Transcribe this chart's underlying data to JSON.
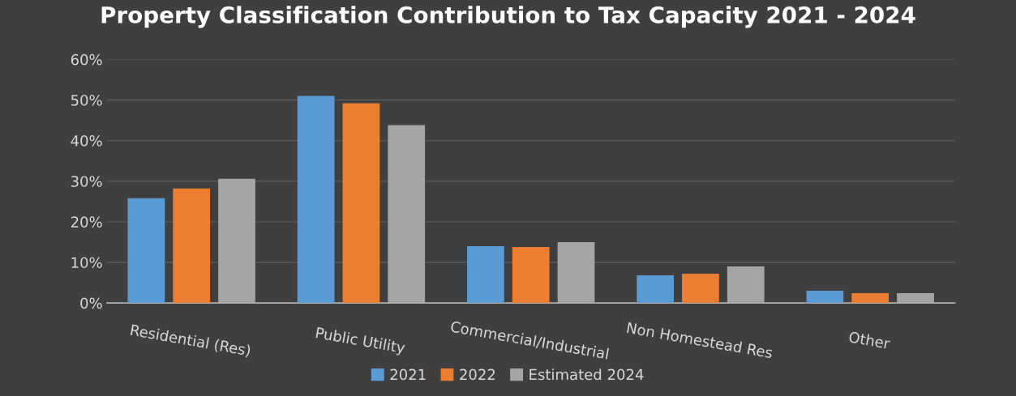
{
  "chart_data": {
    "type": "bar",
    "title": "Property Classification Contribution to Tax Capacity 2021 - 2024",
    "categories": [
      "Residential (Res)",
      "Public Utility",
      "Commercial/Industrial",
      "Non Homestead Res",
      "Other"
    ],
    "series": [
      {
        "name": "2021",
        "color": "#5b9bd5",
        "values": [
          25.8,
          51,
          14,
          6.8,
          3
        ]
      },
      {
        "name": "2022",
        "color": "#ed7d31",
        "values": [
          28.2,
          49.2,
          13.8,
          7.2,
          2.4
        ]
      },
      {
        "name": "Estimated 2024",
        "color": "#a5a5a5",
        "values": [
          30.6,
          43.8,
          15,
          9,
          2.4
        ]
      }
    ],
    "ylim": [
      0,
      60
    ],
    "yticks": [
      {
        "value": 0,
        "label": "0%"
      },
      {
        "value": 10,
        "label": "10%"
      },
      {
        "value": 20,
        "label": "20%"
      },
      {
        "value": 30,
        "label": "30%"
      },
      {
        "value": 40,
        "label": "40%"
      },
      {
        "value": 50,
        "label": "50%"
      },
      {
        "value": 60,
        "label": "60%"
      }
    ],
    "grid": "y",
    "legend": "bottom"
  }
}
